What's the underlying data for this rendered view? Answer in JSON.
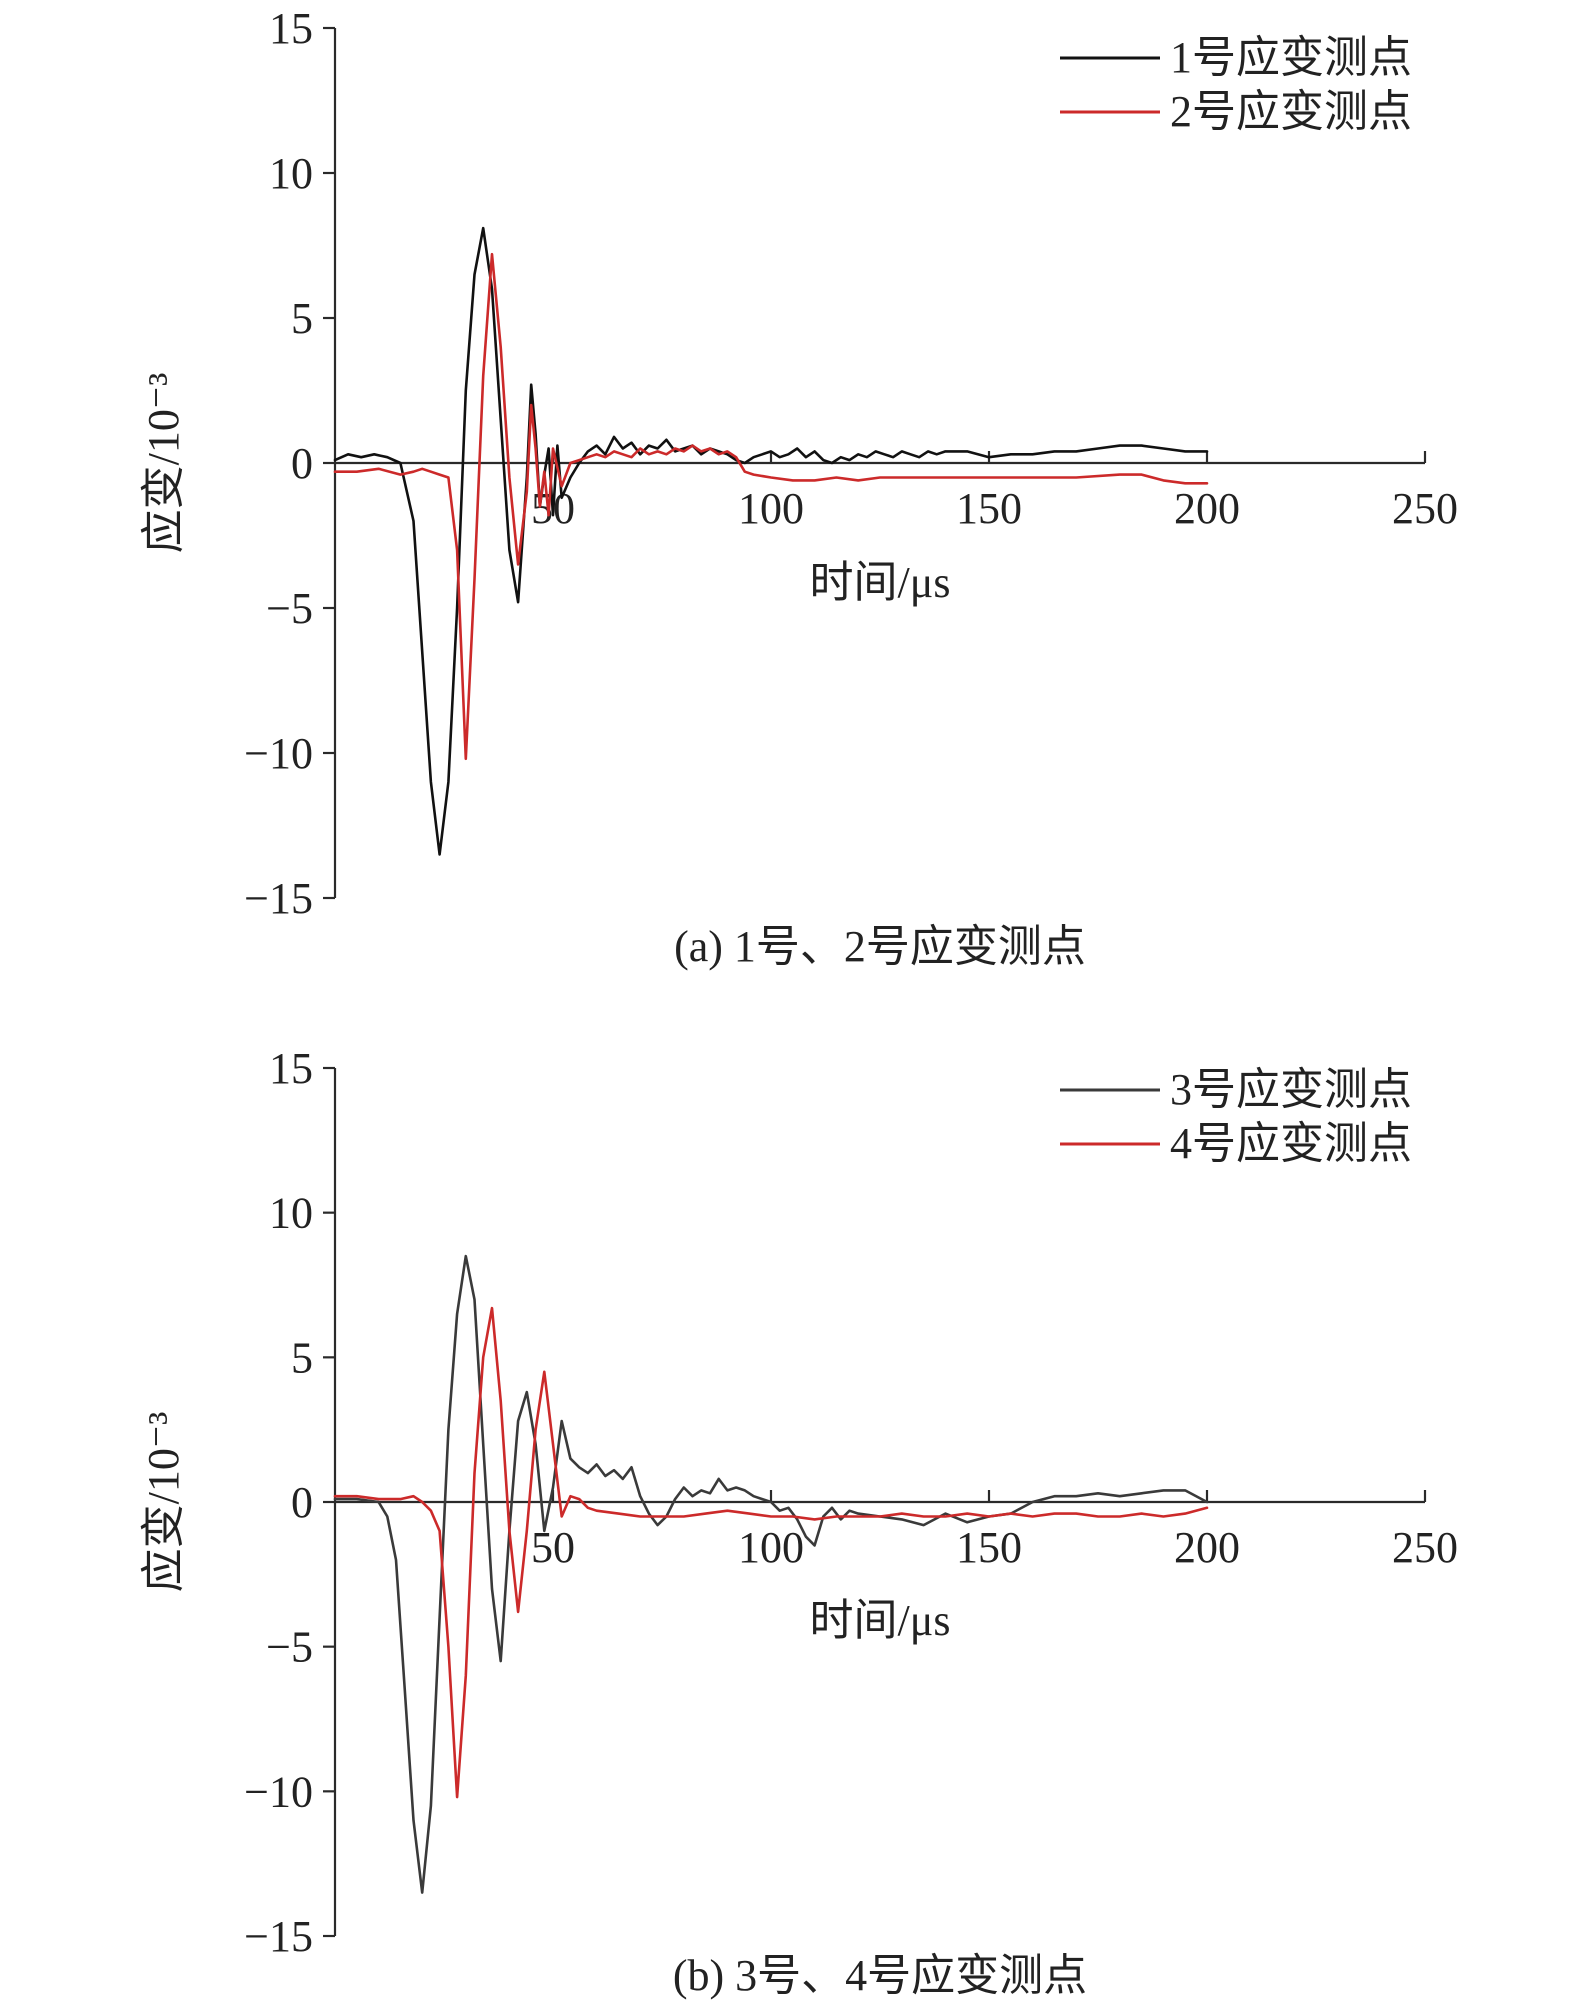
{
  "chart_data": [
    {
      "type": "line",
      "caption": "(a) 1号、2号应变测点",
      "xlabel": "时间/μs",
      "ylabel": "应变/10⁻³",
      "xlim": [
        0,
        250
      ],
      "ylim": [
        -15,
        15
      ],
      "xticks": [
        50,
        100,
        150,
        200,
        250
      ],
      "yticks": [
        15,
        10,
        5,
        0,
        -5,
        -10,
        -15
      ],
      "legend_position": "top-right",
      "series": [
        {
          "name": "1号应变测点",
          "color": "#111111",
          "x": [
            0,
            3,
            6,
            9,
            12,
            15,
            18,
            20,
            22,
            24,
            26,
            28,
            30,
            32,
            34,
            36,
            38,
            40,
            42,
            44,
            45,
            46,
            47,
            48,
            49,
            50,
            51,
            52,
            54,
            56,
            58,
            60,
            62,
            64,
            66,
            68,
            70,
            72,
            74,
            76,
            78,
            80,
            82,
            84,
            86,
            88,
            90,
            92,
            94,
            96,
            98,
            100,
            102,
            104,
            106,
            108,
            110,
            112,
            114,
            116,
            118,
            120,
            122,
            124,
            126,
            128,
            130,
            132,
            134,
            136,
            138,
            140,
            145,
            150,
            155,
            160,
            165,
            170,
            175,
            180,
            185,
            190,
            195,
            200
          ],
          "y": [
            0.1,
            0.3,
            0.2,
            0.3,
            0.2,
            0.0,
            -2.0,
            -6.5,
            -11.0,
            -13.5,
            -11.0,
            -5.0,
            2.5,
            6.5,
            8.1,
            6.0,
            1.5,
            -3.0,
            -4.8,
            -0.5,
            2.7,
            1.0,
            -1.5,
            -0.4,
            0.5,
            -1.8,
            0.6,
            -1.2,
            -0.5,
            0.0,
            0.4,
            0.6,
            0.3,
            0.9,
            0.5,
            0.7,
            0.3,
            0.6,
            0.5,
            0.8,
            0.4,
            0.5,
            0.6,
            0.3,
            0.5,
            0.4,
            0.3,
            0.1,
            0.0,
            0.2,
            0.3,
            0.4,
            0.2,
            0.3,
            0.5,
            0.2,
            0.4,
            0.1,
            0.0,
            0.2,
            0.1,
            0.3,
            0.2,
            0.4,
            0.3,
            0.2,
            0.4,
            0.3,
            0.2,
            0.4,
            0.3,
            0.4,
            0.4,
            0.2,
            0.3,
            0.3,
            0.4,
            0.4,
            0.5,
            0.6,
            0.6,
            0.5,
            0.4,
            0.4
          ]
        },
        {
          "name": "2号应变测点",
          "color": "#cc2a2a",
          "x": [
            0,
            5,
            10,
            15,
            18,
            20,
            22,
            24,
            26,
            28,
            30,
            32,
            34,
            36,
            38,
            40,
            42,
            44,
            45,
            46,
            47,
            48,
            49,
            50,
            52,
            54,
            56,
            58,
            60,
            62,
            64,
            66,
            68,
            70,
            72,
            74,
            76,
            78,
            80,
            82,
            84,
            86,
            88,
            90,
            92,
            94,
            96,
            100,
            105,
            110,
            115,
            120,
            125,
            130,
            135,
            140,
            150,
            160,
            170,
            180,
            185,
            190,
            195,
            200
          ],
          "y": [
            -0.3,
            -0.3,
            -0.2,
            -0.4,
            -0.3,
            -0.2,
            -0.3,
            -0.4,
            -0.5,
            -3.0,
            -10.2,
            -4.0,
            3.0,
            7.2,
            4.0,
            -0.5,
            -3.5,
            -1.0,
            2.0,
            0.5,
            -1.5,
            -0.3,
            -1.8,
            0.5,
            -0.8,
            0.0,
            0.1,
            0.2,
            0.3,
            0.2,
            0.4,
            0.3,
            0.2,
            0.5,
            0.3,
            0.4,
            0.3,
            0.5,
            0.4,
            0.6,
            0.4,
            0.5,
            0.3,
            0.4,
            0.2,
            -0.3,
            -0.4,
            -0.5,
            -0.6,
            -0.6,
            -0.5,
            -0.6,
            -0.5,
            -0.5,
            -0.5,
            -0.5,
            -0.5,
            -0.5,
            -0.5,
            -0.4,
            -0.4,
            -0.6,
            -0.7,
            -0.7
          ]
        }
      ]
    },
    {
      "type": "line",
      "caption": "(b) 3号、4号应变测点",
      "xlabel": "时间/μs",
      "ylabel": "应变/10⁻³",
      "xlim": [
        0,
        250
      ],
      "ylim": [
        -15,
        15
      ],
      "xticks": [
        50,
        100,
        150,
        200,
        250
      ],
      "yticks": [
        15,
        10,
        5,
        0,
        -5,
        -10,
        -15
      ],
      "legend_position": "top-right",
      "series": [
        {
          "name": "3号应变测点",
          "color": "#3a3a3a",
          "x": [
            0,
            5,
            10,
            12,
            14,
            16,
            18,
            20,
            22,
            24,
            26,
            28,
            30,
            32,
            34,
            36,
            38,
            40,
            42,
            44,
            46,
            48,
            50,
            52,
            54,
            56,
            58,
            60,
            62,
            64,
            66,
            68,
            70,
            72,
            74,
            76,
            78,
            80,
            82,
            84,
            86,
            88,
            90,
            92,
            94,
            96,
            98,
            100,
            102,
            104,
            106,
            108,
            110,
            112,
            114,
            116,
            118,
            120,
            125,
            130,
            135,
            140,
            145,
            150,
            155,
            160,
            165,
            170,
            175,
            180,
            185,
            190,
            195,
            200
          ],
          "y": [
            0.1,
            0.1,
            0.0,
            -0.5,
            -2.0,
            -6.5,
            -11.0,
            -13.5,
            -10.5,
            -4.0,
            2.5,
            6.5,
            8.5,
            7.0,
            2.0,
            -3.0,
            -5.5,
            -1.0,
            2.8,
            3.8,
            2.0,
            -1.0,
            0.5,
            2.8,
            1.5,
            1.2,
            1.0,
            1.3,
            0.9,
            1.1,
            0.8,
            1.2,
            0.2,
            -0.4,
            -0.8,
            -0.5,
            0.1,
            0.5,
            0.2,
            0.4,
            0.3,
            0.8,
            0.4,
            0.5,
            0.4,
            0.2,
            0.1,
            0.0,
            -0.3,
            -0.2,
            -0.6,
            -1.2,
            -1.5,
            -0.5,
            -0.2,
            -0.6,
            -0.3,
            -0.4,
            -0.5,
            -0.6,
            -0.8,
            -0.4,
            -0.7,
            -0.5,
            -0.4,
            0.0,
            0.2,
            0.2,
            0.3,
            0.2,
            0.3,
            0.4,
            0.4,
            0.0
          ]
        },
        {
          "name": "4号应变测点",
          "color": "#cc2a2a",
          "x": [
            0,
            5,
            10,
            15,
            18,
            20,
            22,
            24,
            26,
            28,
            30,
            32,
            34,
            36,
            38,
            40,
            42,
            44,
            46,
            48,
            50,
            52,
            54,
            56,
            58,
            60,
            65,
            70,
            75,
            80,
            85,
            90,
            95,
            100,
            105,
            110,
            115,
            120,
            125,
            130,
            135,
            140,
            145,
            150,
            155,
            160,
            165,
            170,
            175,
            180,
            185,
            190,
            195,
            200
          ],
          "y": [
            0.2,
            0.2,
            0.1,
            0.1,
            0.2,
            0.0,
            -0.3,
            -1.0,
            -5.0,
            -10.2,
            -6.0,
            1.0,
            5.0,
            6.7,
            3.5,
            -1.0,
            -3.8,
            -1.0,
            2.5,
            4.5,
            2.0,
            -0.5,
            0.2,
            0.1,
            -0.2,
            -0.3,
            -0.4,
            -0.5,
            -0.5,
            -0.5,
            -0.4,
            -0.3,
            -0.4,
            -0.5,
            -0.5,
            -0.6,
            -0.5,
            -0.5,
            -0.5,
            -0.4,
            -0.5,
            -0.5,
            -0.4,
            -0.5,
            -0.4,
            -0.5,
            -0.4,
            -0.4,
            -0.5,
            -0.5,
            -0.4,
            -0.5,
            -0.4,
            -0.2
          ]
        }
      ]
    }
  ]
}
